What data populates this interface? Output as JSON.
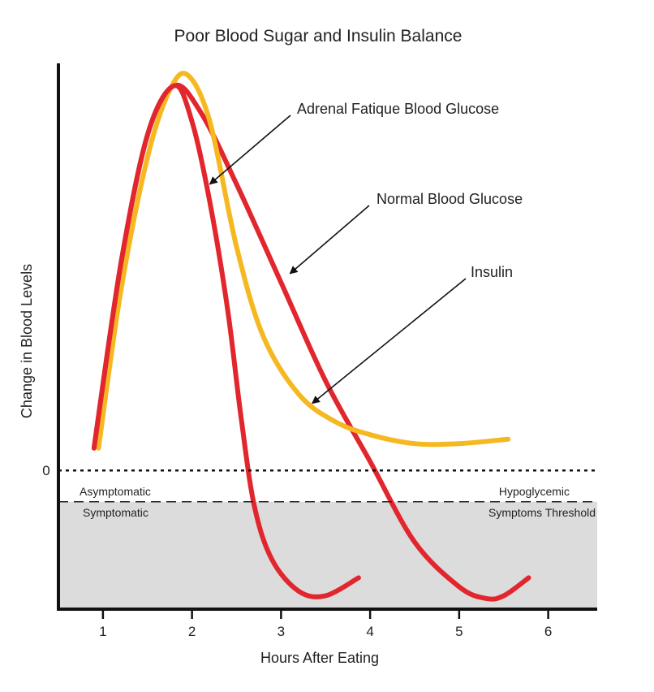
{
  "chart_data": {
    "type": "line",
    "title": "Poor Blood Sugar and Insulin Balance",
    "xlabel": "Hours After Eating",
    "ylabel": "Change in Blood Levels",
    "xlim": [
      0.5,
      6.55
    ],
    "ylim": [
      -1.55,
      4.55
    ],
    "x_ticks": [
      "1",
      "2",
      "3",
      "4",
      "5",
      "6"
    ],
    "y_ticks": [
      "0"
    ],
    "baseline_y": 0,
    "threshold_y": -0.35,
    "zones": {
      "above": "Asymptomatic",
      "below": "Symptomatic",
      "threshold_line1": "Hypoglycemic",
      "threshold_line2": "Symptoms Threshold"
    },
    "series": [
      {
        "name": "Normal Blood Glucose",
        "color": "#e2262d",
        "points": [
          [
            0.9,
            0.25
          ],
          [
            1.2,
            2.3
          ],
          [
            1.5,
            3.75
          ],
          [
            1.8,
            4.3
          ],
          [
            2.1,
            4.0
          ],
          [
            2.5,
            3.2
          ],
          [
            3.0,
            2.1
          ],
          [
            3.5,
            1.0
          ],
          [
            4.0,
            0.1
          ],
          [
            4.5,
            -0.8
          ],
          [
            5.0,
            -1.3
          ],
          [
            5.3,
            -1.43
          ],
          [
            5.5,
            -1.4
          ],
          [
            5.78,
            -1.2
          ]
        ]
      },
      {
        "name": "Adrenal Fatique Blood Glucose",
        "color": "#e2262d",
        "points": [
          [
            0.9,
            0.25
          ],
          [
            1.2,
            2.3
          ],
          [
            1.5,
            3.75
          ],
          [
            1.8,
            4.3
          ],
          [
            2.0,
            3.9
          ],
          [
            2.2,
            3.0
          ],
          [
            2.4,
            1.8
          ],
          [
            2.55,
            0.6
          ],
          [
            2.7,
            -0.4
          ],
          [
            2.9,
            -1.0
          ],
          [
            3.2,
            -1.35
          ],
          [
            3.5,
            -1.4
          ],
          [
            3.87,
            -1.2
          ]
        ]
      },
      {
        "name": "Insulin",
        "color": "#f5b820",
        "points": [
          [
            0.95,
            0.25
          ],
          [
            1.2,
            2.0
          ],
          [
            1.5,
            3.5
          ],
          [
            1.75,
            4.25
          ],
          [
            1.95,
            4.42
          ],
          [
            2.2,
            3.9
          ],
          [
            2.5,
            2.5
          ],
          [
            2.8,
            1.5
          ],
          [
            3.2,
            0.85
          ],
          [
            3.6,
            0.55
          ],
          [
            4.0,
            0.4
          ],
          [
            4.5,
            0.3
          ],
          [
            5.0,
            0.3
          ],
          [
            5.55,
            0.35
          ]
        ]
      }
    ],
    "annotations": [
      {
        "label": "Adrenal Fatique Blood Glucose",
        "target": [
          2.2,
          3.2
        ]
      },
      {
        "label": "Normal Blood Glucose",
        "target": [
          3.1,
          2.2
        ]
      },
      {
        "label": "Insulin",
        "target": [
          3.35,
          0.75
        ]
      }
    ],
    "grid": false,
    "legend": "none"
  }
}
